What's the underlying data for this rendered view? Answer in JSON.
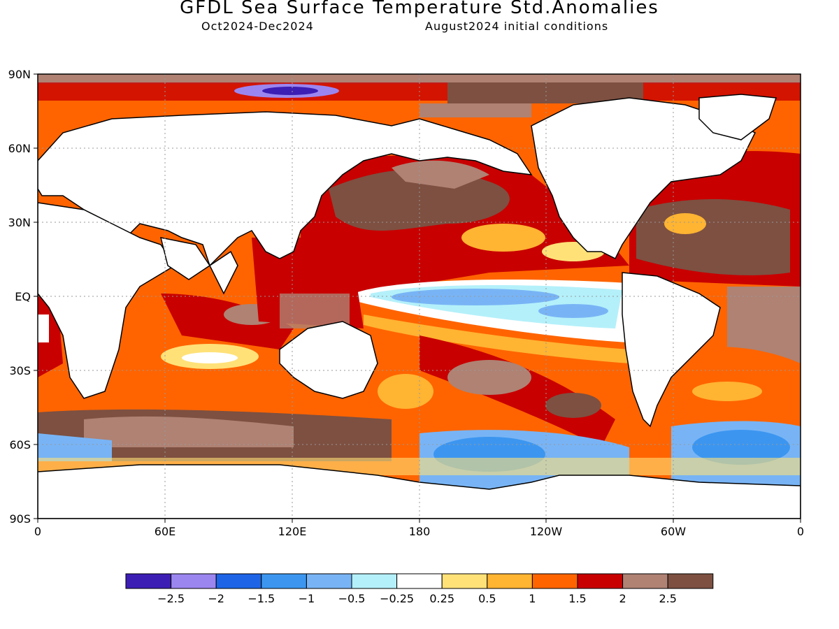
{
  "title": "GFDL Sea Surface Temperature Std.Anomalies",
  "subtitle_left": "Oct2024-Dec2024",
  "subtitle_right": "August2024 initial conditions",
  "lat_labels": [
    "90N",
    "60N",
    "30N",
    "EQ",
    "30S",
    "60S",
    "90S"
  ],
  "lon_labels": [
    "0",
    "60E",
    "120E",
    "180",
    "120W",
    "60W",
    "0"
  ],
  "colorbar": {
    "colors": [
      "#3c1eb4",
      "#9b86f0",
      "#1e64e6",
      "#3c96f0",
      "#78b4f5",
      "#b4f0fa",
      "#ffffff",
      "#ffe178",
      "#ffb432",
      "#ff6400",
      "#c80000",
      "#af8273",
      "#7d5041"
    ],
    "labels": [
      "-2.5",
      "-2",
      "-1.5",
      "-1",
      "-0.5",
      "-0.25",
      "0.25",
      "0.5",
      "1",
      "1.5",
      "2",
      "2.5"
    ]
  }
}
